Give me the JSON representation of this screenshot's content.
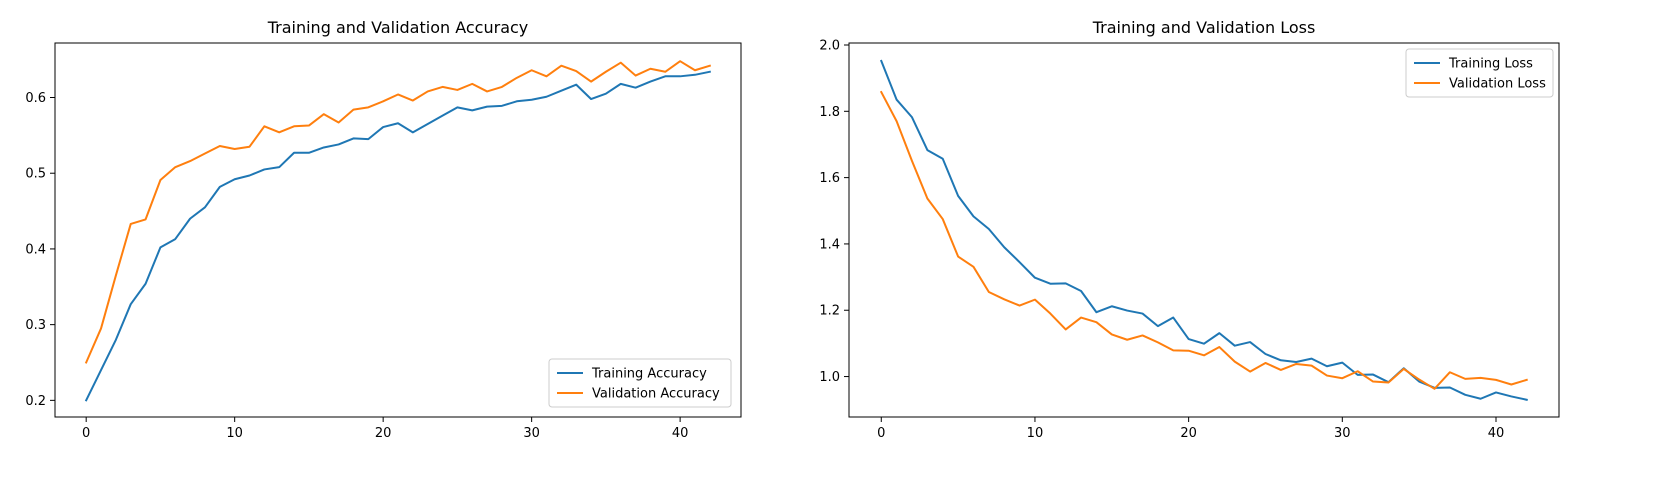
{
  "chart_data": [
    {
      "type": "line",
      "title": "Training and Validation Accuracy",
      "xlabel": "",
      "ylabel": "",
      "xlim": [
        -2.1,
        44.1
      ],
      "ylim": [
        0.178,
        0.672
      ],
      "xticks": [
        0,
        10,
        20,
        30,
        40
      ],
      "yticks": [
        0.2,
        0.3,
        0.4,
        0.5,
        0.6
      ],
      "ytick_labels": [
        "0.2",
        "0.3",
        "0.4",
        "0.5",
        "0.6"
      ],
      "grid": false,
      "legend_position": "lower-right",
      "x": [
        0,
        1,
        2,
        3,
        4,
        5,
        6,
        7,
        8,
        9,
        10,
        11,
        12,
        13,
        14,
        15,
        16,
        17,
        18,
        19,
        20,
        21,
        22,
        23,
        24,
        25,
        26,
        27,
        28,
        29,
        30,
        31,
        32,
        33,
        34,
        35,
        36,
        37,
        38,
        39,
        40,
        41,
        42
      ],
      "series": [
        {
          "name": "Training Accuracy",
          "color": "#1f77b4",
          "values": [
            0.2,
            0.24,
            0.28,
            0.327,
            0.354,
            0.402,
            0.413,
            0.44,
            0.455,
            0.482,
            0.492,
            0.497,
            0.505,
            0.508,
            0.527,
            0.527,
            0.534,
            0.538,
            0.546,
            0.545,
            0.561,
            0.566,
            0.554,
            0.565,
            0.576,
            0.587,
            0.583,
            0.588,
            0.589,
            0.595,
            0.597,
            0.601,
            0.609,
            0.617,
            0.598,
            0.605,
            0.618,
            0.613,
            0.621,
            0.628,
            0.628,
            0.63,
            0.634
          ]
        },
        {
          "name": "Validation Accuracy",
          "color": "#ff7f0e",
          "values": [
            0.25,
            0.295,
            0.365,
            0.433,
            0.439,
            0.491,
            0.508,
            0.516,
            0.526,
            0.536,
            0.532,
            0.535,
            0.562,
            0.554,
            0.562,
            0.563,
            0.578,
            0.567,
            0.584,
            0.587,
            0.595,
            0.604,
            0.596,
            0.608,
            0.614,
            0.61,
            0.618,
            0.608,
            0.614,
            0.626,
            0.636,
            0.628,
            0.642,
            0.635,
            0.621,
            0.634,
            0.646,
            0.629,
            0.638,
            0.634,
            0.648,
            0.636,
            0.642
          ]
        }
      ]
    },
    {
      "type": "line",
      "title": "Training and Validation Loss",
      "xlabel": "",
      "ylabel": "",
      "xlim": [
        -2.1,
        44.1
      ],
      "ylim": [
        0.878,
        2.006
      ],
      "xticks": [
        0,
        10,
        20,
        30,
        40
      ],
      "yticks": [
        1.0,
        1.2,
        1.4,
        1.6,
        1.8,
        2.0
      ],
      "ytick_labels": [
        "1.0",
        "1.2",
        "1.4",
        "1.6",
        "1.8",
        "2.0"
      ],
      "grid": false,
      "legend_position": "upper-right",
      "x": [
        0,
        1,
        2,
        3,
        4,
        5,
        6,
        7,
        8,
        9,
        10,
        11,
        12,
        13,
        14,
        15,
        16,
        17,
        18,
        19,
        20,
        21,
        22,
        23,
        24,
        25,
        26,
        27,
        28,
        29,
        30,
        31,
        32,
        33,
        34,
        35,
        36,
        37,
        38,
        39,
        40,
        41,
        42
      ],
      "series": [
        {
          "name": "Training Loss",
          "color": "#1f77b4",
          "values": [
            1.952,
            1.835,
            1.782,
            1.683,
            1.657,
            1.545,
            1.483,
            1.445,
            1.39,
            1.345,
            1.298,
            1.28,
            1.281,
            1.258,
            1.194,
            1.212,
            1.199,
            1.19,
            1.152,
            1.178,
            1.113,
            1.099,
            1.131,
            1.093,
            1.104,
            1.068,
            1.049,
            1.044,
            1.054,
            1.031,
            1.042,
            1.005,
            1.006,
            0.983,
            1.025,
            0.985,
            0.966,
            0.967,
            0.945,
            0.933,
            0.952,
            0.94,
            0.93
          ]
        },
        {
          "name": "Validation Loss",
          "color": "#ff7f0e",
          "values": [
            1.858,
            1.77,
            1.65,
            1.537,
            1.475,
            1.362,
            1.331,
            1.255,
            1.233,
            1.214,
            1.232,
            1.19,
            1.142,
            1.178,
            1.164,
            1.127,
            1.111,
            1.124,
            1.103,
            1.079,
            1.078,
            1.064,
            1.089,
            1.045,
            1.015,
            1.041,
            1.02,
            1.038,
            1.033,
            1.003,
            0.995,
            1.016,
            0.985,
            0.982,
            1.023,
            0.991,
            0.963,
            1.013,
            0.993,
            0.996,
            0.99,
            0.976,
            0.99
          ]
        }
      ]
    }
  ]
}
